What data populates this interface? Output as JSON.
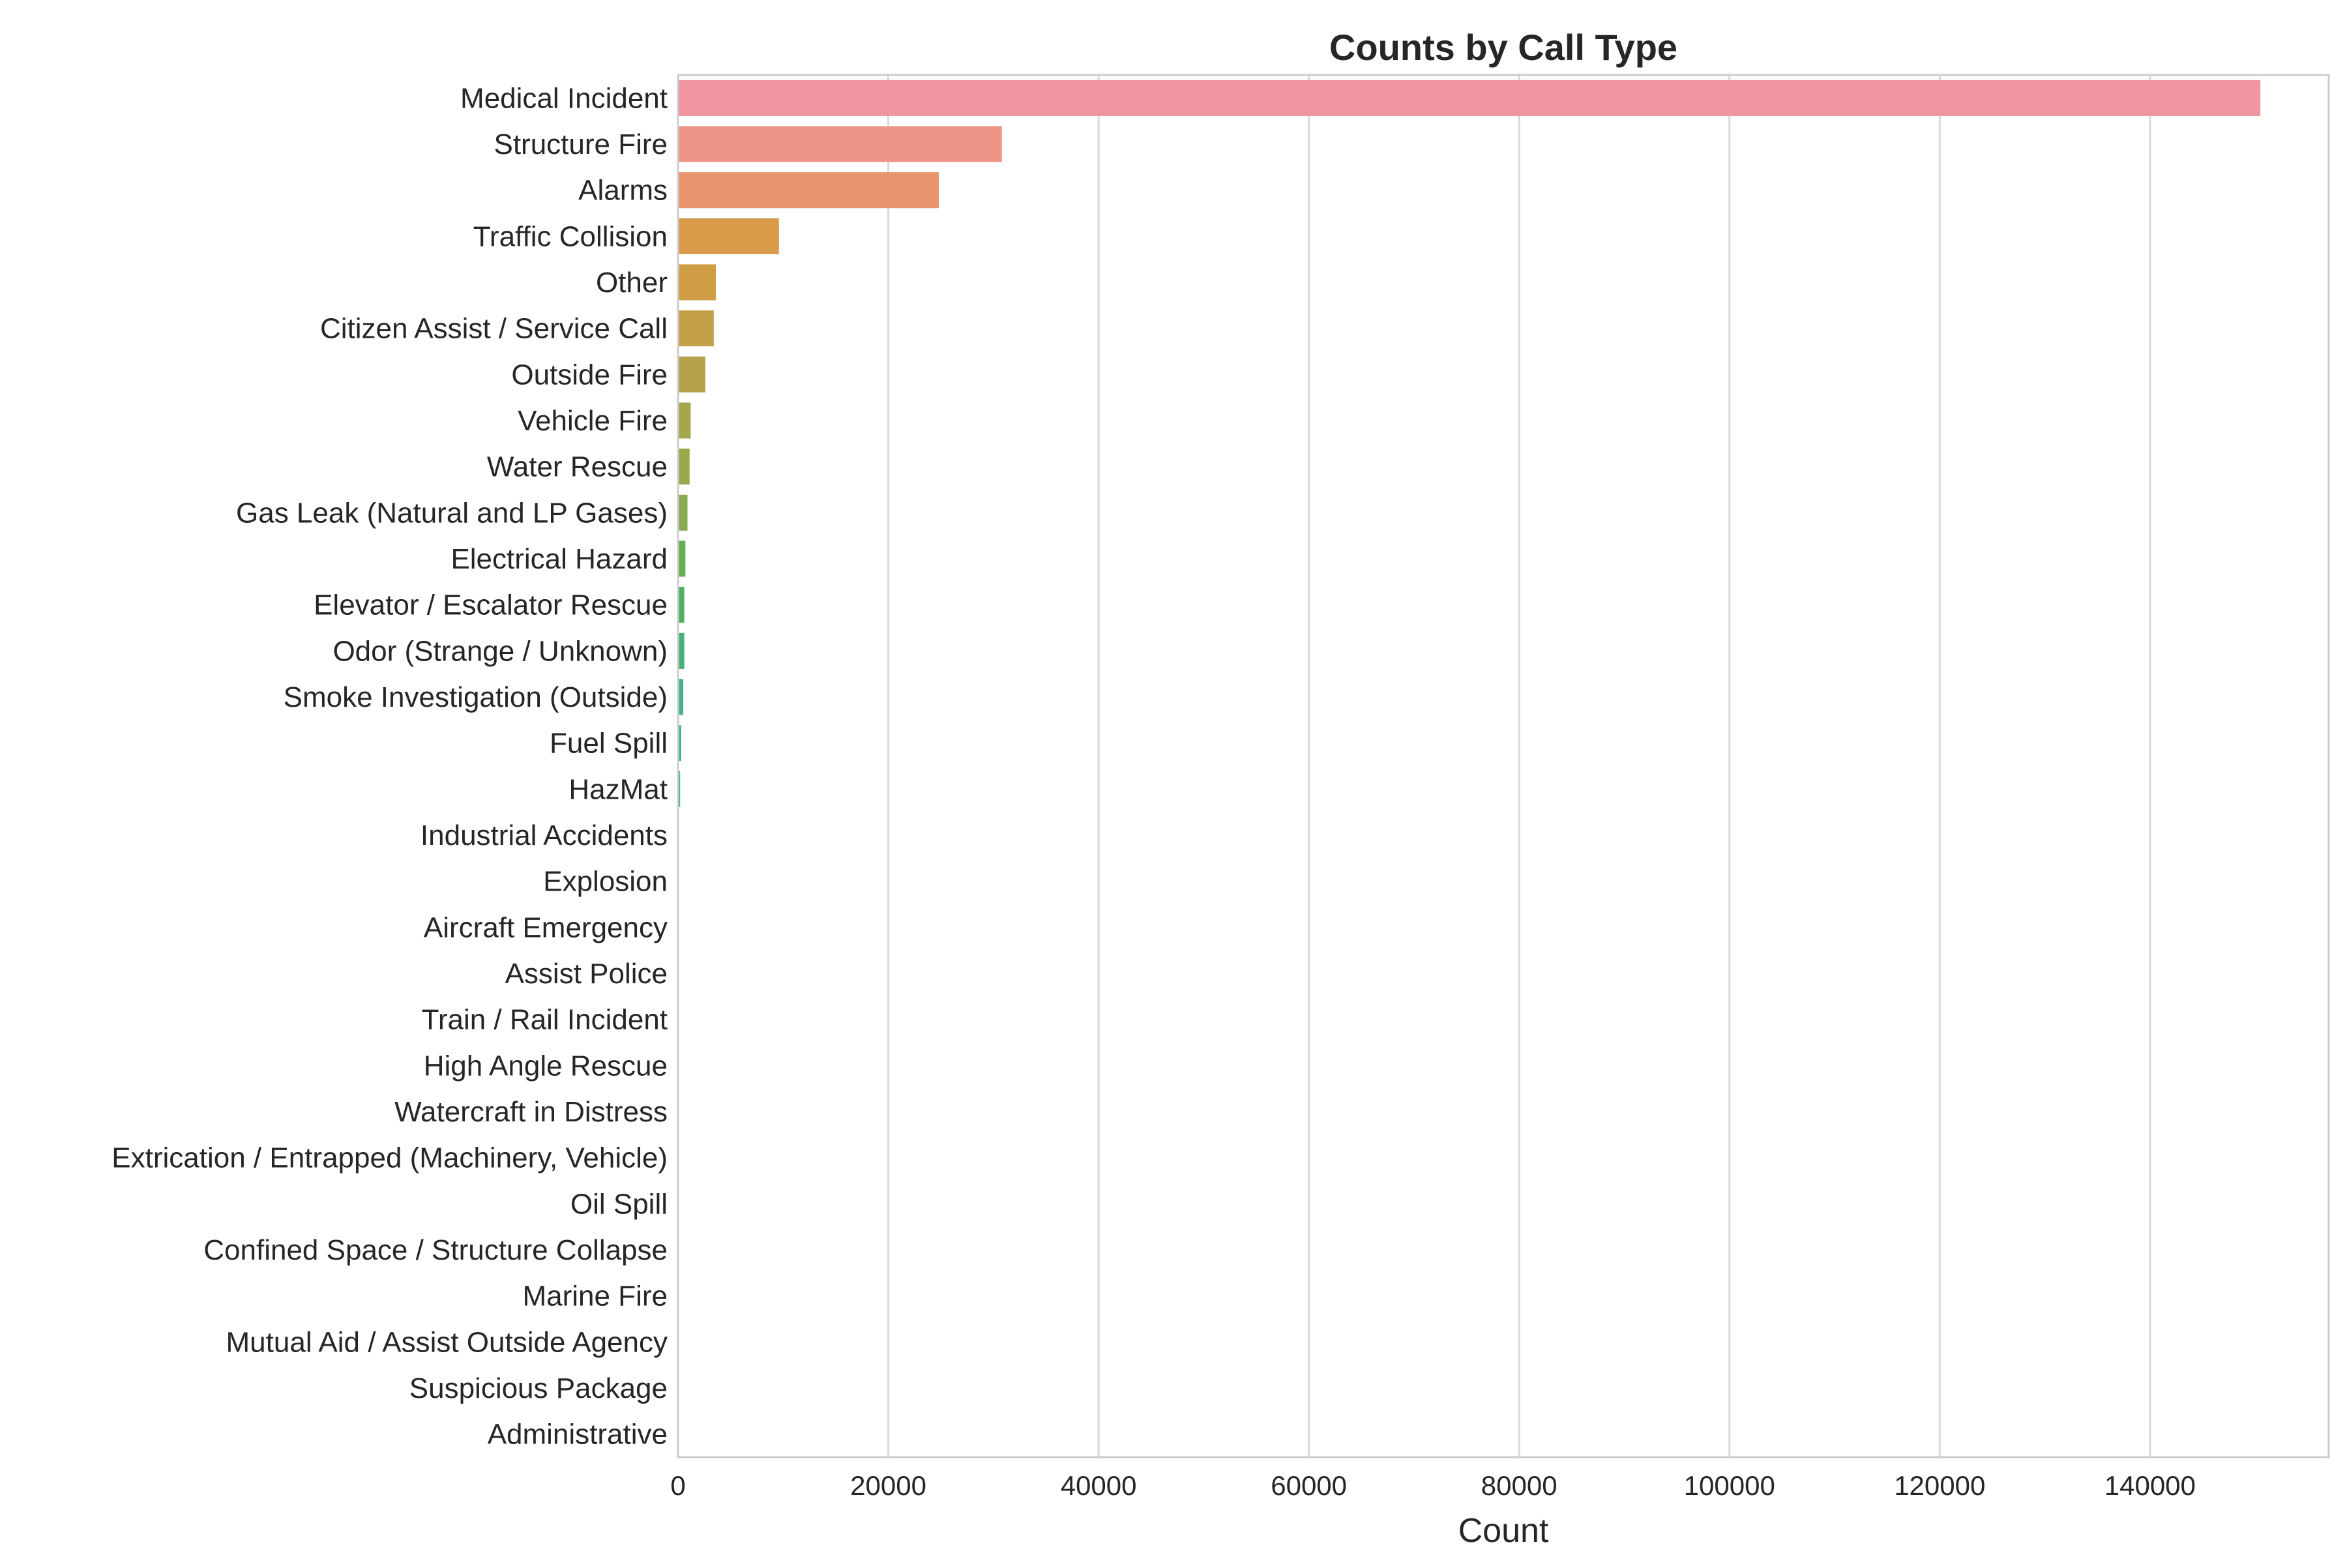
{
  "chart_data": {
    "type": "bar",
    "orientation": "horizontal",
    "title": "Counts by Call Type",
    "xlabel": "Count",
    "ylabel": "",
    "xlim": [
      0,
      157000
    ],
    "xticks": [
      0,
      20000,
      40000,
      60000,
      80000,
      100000,
      120000,
      140000
    ],
    "xtick_labels": [
      "0",
      "20000",
      "40000",
      "60000",
      "80000",
      "100000",
      "120000",
      "140000"
    ],
    "grid": "vertical",
    "categories": [
      "Medical Incident",
      "Structure Fire",
      "Alarms",
      "Traffic Collision",
      "Other",
      "Citizen Assist / Service Call",
      "Outside Fire",
      "Vehicle Fire",
      "Water Rescue",
      "Gas Leak (Natural and LP Gases)",
      "Electrical Hazard",
      "Elevator / Escalator Rescue",
      "Odor (Strange / Unknown)",
      "Smoke Investigation (Outside)",
      "Fuel Spill",
      "HazMat",
      "Industrial Accidents",
      "Explosion",
      "Aircraft Emergency",
      "Assist Police",
      "Train / Rail Incident",
      "High Angle Rescue",
      "Watercraft in Distress",
      "Extrication / Entrapped (Machinery, Vehicle)",
      "Oil Spill",
      "Confined Space / Structure Collapse",
      "Marine Fire",
      "Mutual Aid / Assist Outside Agency",
      "Suspicious Package",
      "Administrative"
    ],
    "values": [
      150500,
      30800,
      24800,
      9600,
      3600,
      3400,
      2600,
      1200,
      1100,
      900,
      700,
      600,
      600,
      500,
      300,
      200,
      40,
      35,
      30,
      25,
      20,
      15,
      12,
      10,
      8,
      6,
      5,
      4,
      3,
      2
    ],
    "colors": [
      "#f0949f",
      "#ee9587",
      "#e8956e",
      "#d99a4a",
      "#cf9d44",
      "#c3a048",
      "#b5a34b",
      "#a6a64c",
      "#98a94c",
      "#8bab4f",
      "#64b054",
      "#4fb063",
      "#48b17a",
      "#42b38c",
      "#40b39b",
      "#3fb3a8",
      "#3fb3b3",
      "#40b2bd",
      "#44b1c7",
      "#4ab0d0",
      "#54aed9",
      "#63aae2",
      "#7da6ea",
      "#95a0ef",
      "#ab99f1",
      "#bd92f1",
      "#cc8bef",
      "#da84e6",
      "#e584d3",
      "#ec8ac0"
    ]
  }
}
